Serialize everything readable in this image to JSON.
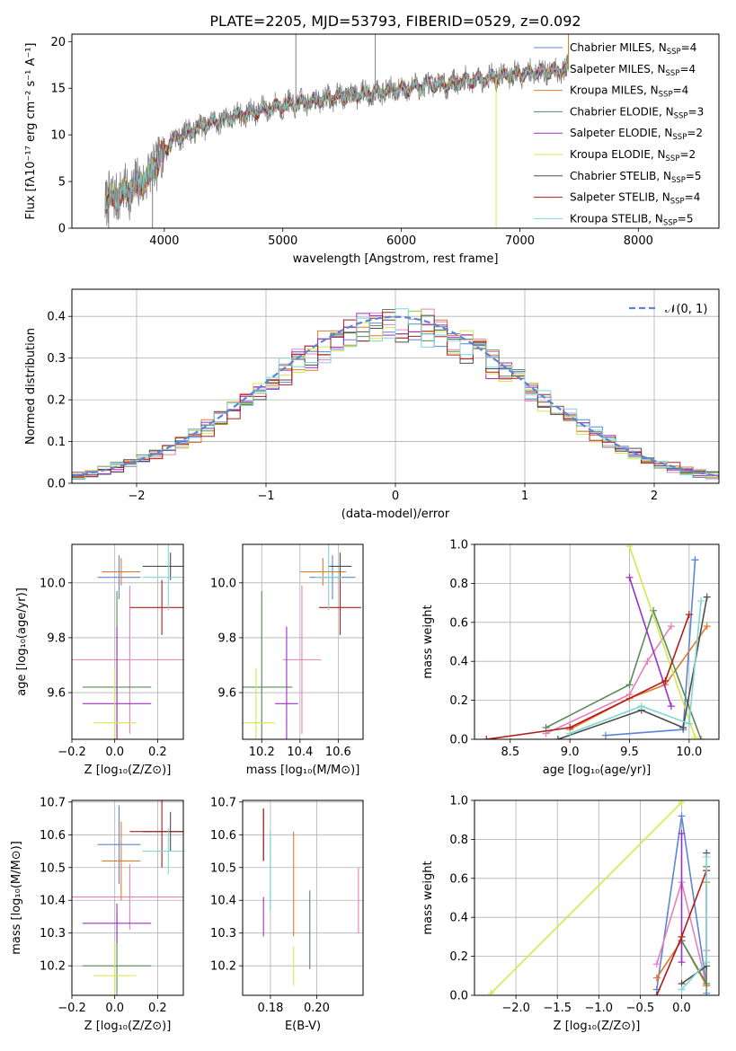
{
  "figure_title": "PLATE=2205, MJD=53793, FIBERID=0529, z=0.092",
  "colors": {
    "Chabrier MILES": "#5b85d6",
    "Salpeter MILES": "#e680b8",
    "Kroupa MILES": "#e07b28",
    "Chabrier ELODIE": "#5a8a5a",
    "Salpeter ELODIE": "#9b30c8",
    "Kroupa ELODIE": "#d4e84c",
    "Chabrier STELIB": "#4d4d4d",
    "Salpeter STELIB": "#b01c1c",
    "Kroupa STELIB": "#7fd6d6",
    "normal": "#5b85d6",
    "data": "#808080"
  },
  "chart_data": [
    {
      "id": "spectrum",
      "type": "line",
      "xlabel": "wavelength [Angstrom, rest frame]",
      "ylabel": "Flux [fλ10⁻¹⁷ erg cm⁻² s⁻¹ A⁻¹]",
      "xlim": [
        3220,
        8680
      ],
      "ylim": [
        0,
        20.8
      ],
      "xticks": [
        4000,
        5000,
        6000,
        7000,
        8000
      ],
      "yticks": [
        0,
        5,
        10,
        15,
        20
      ],
      "legend": "right",
      "spectrum_anchors": {
        "x": [
          3500,
          3700,
          3850,
          3950,
          4050,
          4200,
          4400,
          4600,
          4800,
          5000,
          5200,
          5400,
          5600,
          5800,
          6000,
          6200,
          6400,
          6600,
          6800,
          7000,
          7200,
          7400
        ],
        "y": [
          3.0,
          4.0,
          5.3,
          7.2,
          9.3,
          10.3,
          11.3,
          12.0,
          12.6,
          13.2,
          13.5,
          14.0,
          14.3,
          14.6,
          14.9,
          15.3,
          15.5,
          15.9,
          16.2,
          16.5,
          16.8,
          17.0
        ]
      },
      "series": [
        {
          "name": "Chabrier MILES, N$_{SSP}$=4",
          "label_main": "Chabrier MILES, N",
          "label_sub": "SSP",
          "label_tail": "=4"
        },
        {
          "name": "Salpeter MILES, N$_{SSP}$=4",
          "label_main": "Salpeter MILES, N",
          "label_sub": "SSP",
          "label_tail": "=4"
        },
        {
          "name": "Kroupa MILES, N$_{SSP}$=4",
          "label_main": "Kroupa MILES, N",
          "label_sub": "SSP",
          "label_tail": "=4"
        },
        {
          "name": "Chabrier ELODIE, N$_{SSP}$=3",
          "label_main": "Chabrier ELODIE, N",
          "label_sub": "SSP",
          "label_tail": "=3"
        },
        {
          "name": "Salpeter ELODIE, N$_{SSP}$=2",
          "label_main": "Salpeter ELODIE, N",
          "label_sub": "SSP",
          "label_tail": "=2"
        },
        {
          "name": "Kroupa ELODIE, N$_{SSP}$=2",
          "label_main": "Kroupa ELODIE, N",
          "label_sub": "SSP",
          "label_tail": "=2"
        },
        {
          "name": "Chabrier STELIB, N$_{SSP}$=5",
          "label_main": "Chabrier STELIB, N",
          "label_sub": "SSP",
          "label_tail": "=5"
        },
        {
          "name": "Salpeter STELIB, N$_{SSP}$=4",
          "label_main": "Salpeter STELIB, N",
          "label_sub": "SSP",
          "label_tail": "=4"
        },
        {
          "name": "Kroupa STELIB, N$_{SSP}$=5",
          "label_main": "Kroupa STELIB, N",
          "label_sub": "SSP",
          "label_tail": "=5"
        }
      ]
    },
    {
      "id": "residuals",
      "type": "histogram",
      "xlabel": "(data-model)/error",
      "ylabel": "Normed distribution",
      "xlim": [
        -2.5,
        2.5
      ],
      "ylim": [
        0,
        0.465
      ],
      "xticks": [
        -2,
        -1,
        0,
        1,
        2
      ],
      "yticks": [
        0.0,
        0.1,
        0.2,
        0.3,
        0.4
      ],
      "grid": true,
      "bin_width": 0.1,
      "bin_start": -2.5,
      "normal_label": "𝒩(0, 1)",
      "normal_mu": 0,
      "normal_sigma": 1,
      "legend": "top-right"
    },
    {
      "id": "z-age",
      "type": "errorbar",
      "xlabel": "Z [log₁₀(Z/Z⊙)]",
      "ylabel": "age  [log₁₀(age/yr)]",
      "xlim": [
        -0.2,
        0.32
      ],
      "ylim": [
        9.43,
        10.14
      ],
      "xticks": [
        -0.2,
        0.0,
        0.2
      ],
      "yticks": [
        9.6,
        9.8,
        10.0
      ],
      "grid": true,
      "points": [
        {
          "x": 0.02,
          "y": 10.02,
          "xerr": 0.1,
          "yerr": 0.08
        },
        {
          "x": 0.07,
          "y": 9.72,
          "xerr": 0.3,
          "yerr": 0.27
        },
        {
          "x": 0.03,
          "y": 10.04,
          "xerr": 0.09,
          "yerr": 0.05
        },
        {
          "x": 0.01,
          "y": 9.62,
          "xerr": 0.16,
          "yerr": 0.35
        },
        {
          "x": 0.01,
          "y": 9.56,
          "xerr": 0.16,
          "yerr": 0.28
        },
        {
          "x": 0.0,
          "y": 9.49,
          "xerr": 0.1,
          "yerr": 0.2
        },
        {
          "x": 0.26,
          "y": 10.06,
          "xerr": 0.13,
          "yerr": 0.05
        },
        {
          "x": 0.22,
          "y": 9.91,
          "xerr": 0.15,
          "yerr": 0.1
        },
        {
          "x": 0.25,
          "y": 10.02,
          "xerr": 0.12,
          "yerr": 0.12
        }
      ]
    },
    {
      "id": "mass-age",
      "type": "errorbar",
      "xlabel": "mass [log₁₀(M/M⊙)]",
      "ylabel": "",
      "xlim": [
        10.1,
        10.73
      ],
      "ylim": [
        9.43,
        10.14
      ],
      "xticks": [
        10.2,
        10.4,
        10.6
      ],
      "yticks": [
        9.6,
        9.8,
        10.0
      ],
      "grid": true,
      "points": [
        {
          "x": 10.57,
          "y": 10.02,
          "xerr": 0.12,
          "yerr": 0.08
        },
        {
          "x": 10.41,
          "y": 9.72,
          "xerr": 0.1,
          "yerr": 0.27
        },
        {
          "x": 10.52,
          "y": 10.04,
          "xerr": 0.12,
          "yerr": 0.05
        },
        {
          "x": 10.2,
          "y": 9.62,
          "xerr": 0.16,
          "yerr": 0.35
        },
        {
          "x": 10.33,
          "y": 9.56,
          "xerr": 0.06,
          "yerr": 0.28
        },
        {
          "x": 10.17,
          "y": 9.49,
          "xerr": 0.1,
          "yerr": 0.2
        },
        {
          "x": 10.61,
          "y": 10.06,
          "xerr": 0.06,
          "yerr": 0.05
        },
        {
          "x": 10.61,
          "y": 9.91,
          "xerr": 0.11,
          "yerr": 0.1
        },
        {
          "x": 10.55,
          "y": 10.02,
          "xerr": 0.07,
          "yerr": 0.12
        }
      ]
    },
    {
      "id": "age-weight",
      "type": "line",
      "xlabel": "age  [log₁₀(age/yr)]",
      "ylabel": "mass weight",
      "xlim": [
        8.2,
        10.25
      ],
      "ylim": [
        0,
        1
      ],
      "xticks": [
        8.5,
        9.0,
        9.5,
        10.0
      ],
      "yticks": [
        0.0,
        0.2,
        0.4,
        0.6,
        0.8,
        1.0
      ],
      "grid": true,
      "series": [
        {
          "x": [
            9.3,
            9.95,
            10.05,
            10.05
          ],
          "y": [
            0.02,
            0.05,
            0.92,
            0.92
          ]
        },
        {
          "x": [
            8.8,
            9.5,
            9.65,
            9.85
          ],
          "y": [
            0.03,
            0.23,
            0.4,
            0.58
          ]
        },
        {
          "x": [
            9.0,
            9.5,
            9.8,
            10.15
          ],
          "y": [
            0.05,
            0.21,
            0.28,
            0.58
          ]
        },
        {
          "x": [
            8.8,
            9.5,
            9.7,
            10.1
          ],
          "y": [
            0.06,
            0.28,
            0.66,
            0.0
          ]
        },
        {
          "x": [
            9.5,
            9.85
          ],
          "y": [
            0.83,
            0.17
          ]
        },
        {
          "x": [
            9.5,
            10.05
          ],
          "y": [
            0.99,
            0.01
          ]
        },
        {
          "x": [
            8.9,
            9.6,
            9.95,
            10.15
          ],
          "y": [
            0.0,
            0.15,
            0.06,
            0.73
          ]
        },
        {
          "x": [
            8.3,
            9.0,
            9.8,
            10.0
          ],
          "y": [
            0.0,
            0.06,
            0.3,
            0.64
          ]
        },
        {
          "x": [
            9.0,
            9.6,
            10.0,
            10.1
          ],
          "y": [
            0.03,
            0.17,
            0.08,
            0.71
          ]
        }
      ]
    },
    {
      "id": "z-mass",
      "type": "errorbar",
      "xlabel": "Z [log₁₀(Z/Z⊙)]",
      "ylabel": "mass [log₁₀(M/M⊙)]",
      "xlim": [
        -0.2,
        0.32
      ],
      "ylim": [
        10.11,
        10.705
      ],
      "xticks": [
        -0.2,
        0.0,
        0.2
      ],
      "yticks": [
        10.2,
        10.3,
        10.4,
        10.5,
        10.6,
        10.7
      ],
      "grid": true,
      "points": [
        {
          "x": 0.02,
          "y": 10.57,
          "xerr": 0.1,
          "yerr": 0.12
        },
        {
          "x": 0.07,
          "y": 10.41,
          "xerr": 0.3,
          "yerr": 0.1
        },
        {
          "x": 0.03,
          "y": 10.52,
          "xerr": 0.09,
          "yerr": 0.12
        },
        {
          "x": 0.01,
          "y": 10.2,
          "xerr": 0.16,
          "yerr": 0.16
        },
        {
          "x": 0.01,
          "y": 10.33,
          "xerr": 0.16,
          "yerr": 0.06
        },
        {
          "x": 0.0,
          "y": 10.17,
          "xerr": 0.1,
          "yerr": 0.1
        },
        {
          "x": 0.26,
          "y": 10.61,
          "xerr": 0.13,
          "yerr": 0.06
        },
        {
          "x": 0.22,
          "y": 10.61,
          "xerr": 0.15,
          "yerr": 0.11
        },
        {
          "x": 0.25,
          "y": 10.55,
          "xerr": 0.12,
          "yerr": 0.07
        }
      ]
    },
    {
      "id": "ebv-mass",
      "type": "errorbar",
      "xlabel": "E(B-V)",
      "ylabel": "",
      "xlim": [
        0.168,
        0.22
      ],
      "ylim": [
        10.11,
        10.705
      ],
      "xticks": [
        0.18,
        0.2
      ],
      "yticks": [
        10.2,
        10.3,
        10.4,
        10.5,
        10.6,
        10.7
      ],
      "grid": true,
      "points": [
        {
          "x": 0.18,
          "y": 10.49,
          "xerr": 0,
          "yerr": 0.12
        },
        {
          "x": 0.218,
          "y": 10.4,
          "xerr": 0,
          "yerr": 0.1
        },
        {
          "x": 0.19,
          "y": 10.45,
          "xerr": 0,
          "yerr": 0.16
        },
        {
          "x": 0.197,
          "y": 10.31,
          "xerr": 0,
          "yerr": 0.12
        },
        {
          "x": 0.177,
          "y": 10.35,
          "xerr": 0,
          "yerr": 0.06
        },
        {
          "x": 0.19,
          "y": 10.2,
          "xerr": 0,
          "yerr": 0.06
        },
        {
          "x": 0.177,
          "y": 10.6,
          "xerr": 0,
          "yerr": 0.08
        },
        {
          "x": 0.177,
          "y": 10.6,
          "xerr": 0,
          "yerr": 0.08
        },
        {
          "x": 0.18,
          "y": 10.49,
          "xerr": 0,
          "yerr": 0.12
        }
      ]
    },
    {
      "id": "z-weight",
      "type": "line",
      "xlabel": "Z [log₁₀(Z/Z⊙)]",
      "ylabel": "mass weight",
      "xlim": [
        -2.5,
        0.45
      ],
      "ylim": [
        0,
        1
      ],
      "xticks": [
        -2.0,
        -1.5,
        -1.0,
        -0.5,
        0.0
      ],
      "yticks": [
        0.0,
        0.2,
        0.4,
        0.6,
        0.8,
        1.0
      ],
      "grid": true,
      "series": [
        {
          "x": [
            -0.3,
            0.0,
            0.3,
            0.3
          ],
          "y": [
            0.03,
            0.92,
            0.05,
            0.01
          ]
        },
        {
          "x": [
            -0.3,
            0.0,
            0.3,
            0.3
          ],
          "y": [
            0.16,
            0.58,
            0.05,
            0.23
          ]
        },
        {
          "x": [
            -0.3,
            0.0,
            0.3,
            0.3
          ],
          "y": [
            0.09,
            0.28,
            0.05,
            0.58
          ]
        },
        {
          "x": [
            0.0,
            0.3,
            0.3
          ],
          "y": [
            0.28,
            0.06,
            0.66
          ]
        },
        {
          "x": [
            0.0,
            0.0
          ],
          "y": [
            0.83,
            0.17
          ]
        },
        {
          "x": [
            -2.3,
            0.0
          ],
          "y": [
            0.01,
            0.99
          ]
        },
        {
          "x": [
            0.0,
            0.3,
            0.3
          ],
          "y": [
            0.06,
            0.15,
            0.73
          ]
        },
        {
          "x": [
            -0.3,
            0.0,
            0.3
          ],
          "y": [
            0.0,
            0.3,
            0.64
          ]
        },
        {
          "x": [
            0.0,
            0.3,
            0.3
          ],
          "y": [
            0.03,
            0.17,
            0.71
          ]
        }
      ]
    }
  ]
}
